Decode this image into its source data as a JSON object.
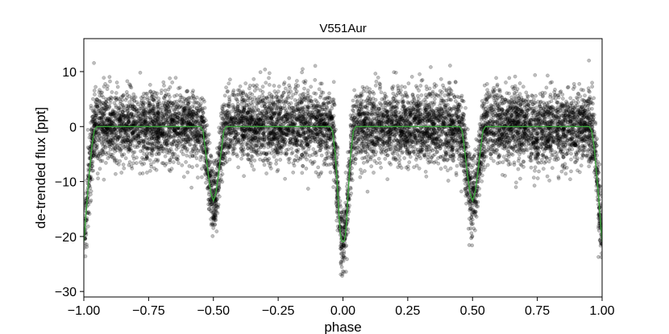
{
  "chart_data": {
    "type": "scatter",
    "title": "V551Aur",
    "xlabel": "phase",
    "ylabel": "de-trended flux [ppt]",
    "xlim": [
      -1.0,
      1.0
    ],
    "ylim": [
      -31,
      16
    ],
    "xticks": [
      -1.0,
      -0.75,
      -0.5,
      -0.25,
      0.0,
      0.25,
      0.5,
      0.75,
      1.0
    ],
    "xtick_labels": [
      "−1.00",
      "−0.75",
      "−0.50",
      "−0.25",
      "0.00",
      "0.25",
      "0.50",
      "0.75",
      "1.00"
    ],
    "yticks": [
      -30,
      -20,
      -10,
      0,
      10
    ],
    "ytick_labels": [
      "−30",
      "−20",
      "−10",
      "0",
      "10"
    ],
    "grid": false,
    "point_color": "#000000",
    "point_alpha": 0.25,
    "model_color": "#3aa53a",
    "model": {
      "name": "",
      "x": [
        -1.0,
        -0.985,
        -0.97,
        -0.96,
        -0.95,
        -0.55,
        -0.54,
        -0.53,
        -0.52,
        -0.51,
        -0.5,
        -0.49,
        -0.48,
        -0.47,
        -0.46,
        -0.45,
        -0.05,
        -0.04,
        -0.03,
        -0.02,
        -0.015,
        -0.01,
        -0.005,
        0.0,
        0.005,
        0.01,
        0.015,
        0.02,
        0.03,
        0.04,
        0.05,
        0.45,
        0.46,
        0.47,
        0.48,
        0.49,
        0.5,
        0.51,
        0.52,
        0.53,
        0.54,
        0.55,
        0.95,
        0.96,
        0.97,
        0.985,
        1.0
      ],
      "y": [
        -21.0,
        -12.0,
        -4.0,
        -0.8,
        0.0,
        0.0,
        -0.8,
        -4.5,
        -8.5,
        -12.0,
        -13.5,
        -12.0,
        -8.5,
        -4.5,
        -0.8,
        0.0,
        0.0,
        -0.8,
        -5.0,
        -12.0,
        -16.5,
        -19.5,
        -20.8,
        -21.0,
        -20.8,
        -19.5,
        -16.5,
        -12.0,
        -5.0,
        -0.8,
        0.0,
        0.0,
        -0.8,
        -4.5,
        -8.5,
        -12.0,
        -13.5,
        -12.0,
        -8.5,
        -4.5,
        -0.8,
        0.0,
        0.0,
        -0.8,
        -4.0,
        -12.0,
        -21.0
      ]
    },
    "scatter_generation": {
      "n_points": 9000,
      "noise_sd_ppt": 3.2,
      "seed": 7
    }
  }
}
